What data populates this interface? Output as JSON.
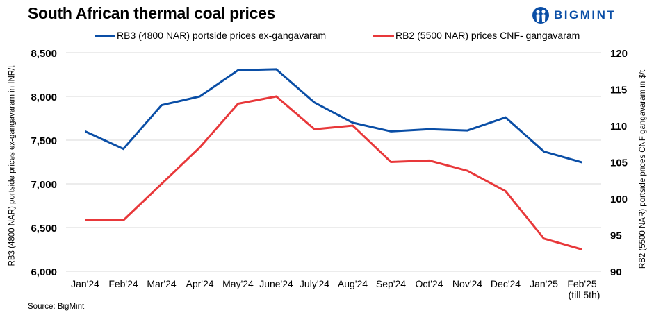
{
  "title": "South African thermal coal prices",
  "logo": {
    "icon": "bigmint-people-icon",
    "text": "BIGMINT",
    "color": "#0a4ea6"
  },
  "source": "Source:  BigMint",
  "chart_data": {
    "type": "line",
    "title": "South African thermal coal prices",
    "categories": [
      "Jan'24",
      "Feb'24",
      "Mar'24",
      "Apr'24",
      "May'24",
      "June'24",
      "July'24",
      "Aug'24",
      "Sep'24",
      "Oct'24",
      "Nov'24",
      "Dec'24",
      "Jan'25",
      "Feb'25\n(till 5th)"
    ],
    "category_labels": [
      [
        "Jan'24"
      ],
      [
        "Feb'24"
      ],
      [
        "Mar'24"
      ],
      [
        "Apr'24"
      ],
      [
        "May'24"
      ],
      [
        "June'24"
      ],
      [
        "July'24"
      ],
      [
        "Aug'24"
      ],
      [
        "Sep'24"
      ],
      [
        "Oct'24"
      ],
      [
        "Nov'24"
      ],
      [
        "Dec'24"
      ],
      [
        "Jan'25"
      ],
      [
        "Feb'25",
        "(till 5th)"
      ]
    ],
    "series": [
      {
        "name": "RB3 (4800 NAR) portside prices ex-gangavaram",
        "axis": "left",
        "color": "#0a4ea6",
        "values": [
          7600,
          7400,
          7900,
          8000,
          8300,
          8310,
          7930,
          7700,
          7600,
          7625,
          7610,
          7760,
          7370,
          7245
        ]
      },
      {
        "name": "RB2 (5500 NAR) prices CNF- gangavaram",
        "axis": "right",
        "color": "#e8383a",
        "values": [
          97,
          97,
          102,
          107,
          113,
          114,
          109.5,
          110,
          105,
          105.2,
          103.8,
          101,
          94.5,
          93
        ]
      }
    ],
    "ylabel": "RB3 (4800 NAR) portside prices ex-gangavaram in INR/t",
    "ylabel_right": "RB2 (5500 NAR) portside prices CNF  gangavaram in $/t",
    "ylim": [
      6000,
      8500
    ],
    "yticks": [
      6000,
      6500,
      7000,
      7500,
      8000,
      8500
    ],
    "ytick_labels": [
      "6,000",
      "6,500",
      "7,000",
      "7,500",
      "8,000",
      "8,500"
    ],
    "ylim_right": [
      90,
      120
    ],
    "yticks_right": [
      90,
      95,
      100,
      105,
      110,
      115,
      120
    ],
    "ytick_labels_right": [
      "90",
      "95",
      "100",
      "105",
      "110",
      "115",
      "120"
    ],
    "grid": true,
    "legend": "top-center"
  }
}
